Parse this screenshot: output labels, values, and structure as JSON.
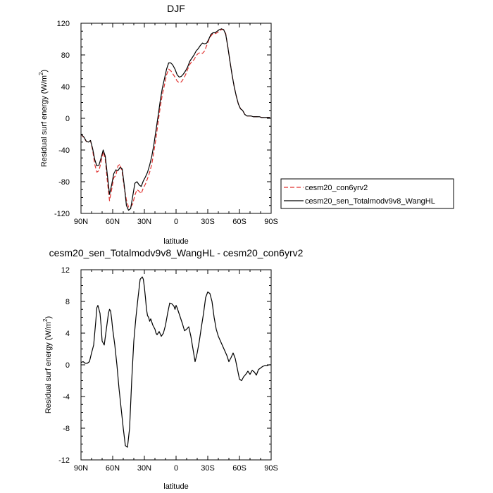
{
  "chart_data": [
    {
      "type": "line",
      "title": "DJF",
      "xlabel": "latitude",
      "ylabel": "Residual surf energy (W/m",
      "ylabel_sup": "2",
      "ylabel_end": ")",
      "xlim": [
        90,
        -90
      ],
      "ylim": [
        -120,
        120
      ],
      "xticks": [
        {
          "v": 90,
          "label": "90N"
        },
        {
          "v": 60,
          "label": "60N"
        },
        {
          "v": 30,
          "label": "30N"
        },
        {
          "v": 0,
          "label": "0"
        },
        {
          "v": -30,
          "label": "30S"
        },
        {
          "v": -60,
          "label": "60S"
        },
        {
          "v": -90,
          "label": "90S"
        }
      ],
      "yticks": [
        -120,
        -80,
        -40,
        0,
        40,
        80,
        120
      ],
      "legend": "right",
      "series": [
        {
          "name": "cesm20_con6yrv2",
          "color": "#e0312f",
          "dash": "dashed",
          "x": [
            90,
            87,
            85,
            83,
            81,
            79,
            77,
            75,
            73,
            71,
            69,
            67,
            65,
            63,
            61,
            59,
            57,
            55,
            53,
            51,
            49,
            47,
            45,
            43,
            41,
            39,
            37,
            35,
            33,
            31,
            29,
            27,
            25,
            23,
            21,
            19,
            17,
            15,
            13,
            11,
            9,
            7,
            5,
            3,
            1,
            -1,
            -3,
            -5,
            -7,
            -9,
            -11,
            -13,
            -15,
            -17,
            -19,
            -21,
            -23,
            -25,
            -27,
            -29,
            -31,
            -33,
            -35,
            -37,
            -39,
            -41,
            -43,
            -45,
            -47,
            -49,
            -51,
            -53,
            -55,
            -57,
            -59,
            -61,
            -63,
            -65,
            -67,
            -69,
            -71,
            -73,
            -75,
            -77,
            -79,
            -81,
            -83,
            -85,
            -87,
            -89
          ],
          "y": [
            -20,
            -25,
            -29,
            -30,
            -28,
            -40,
            -58,
            -68,
            -66,
            -55,
            -42,
            -52,
            -80,
            -104,
            -90,
            -75,
            -72,
            -60,
            -58,
            -68,
            -88,
            -103,
            -112,
            -112,
            -108,
            -97,
            -90,
            -92,
            -95,
            -88,
            -83,
            -76,
            -68,
            -58,
            -42,
            -25,
            -5,
            14,
            30,
            42,
            55,
            62,
            60,
            56,
            52,
            47,
            45,
            46,
            50,
            55,
            62,
            68,
            72,
            74,
            79,
            82,
            83,
            82,
            85,
            92,
            99,
            104,
            107,
            107,
            108,
            110,
            112,
            112,
            107,
            90,
            72,
            55,
            40,
            28,
            18,
            12,
            10,
            5,
            3,
            3,
            3,
            2,
            2,
            2,
            2,
            1,
            1,
            1,
            1,
            1
          ]
        },
        {
          "name": "cesm20_sen_Totalmodv9v8_WangHL",
          "color": "#000000",
          "dash": "solid",
          "x": [
            90,
            87,
            85,
            83,
            81,
            79,
            77,
            75,
            73,
            71,
            69,
            67,
            65,
            63,
            61,
            59,
            57,
            55,
            53,
            51,
            49,
            47,
            45,
            43,
            41,
            39,
            37,
            35,
            33,
            31,
            29,
            27,
            25,
            23,
            21,
            19,
            17,
            15,
            13,
            11,
            9,
            7,
            5,
            3,
            1,
            -1,
            -3,
            -5,
            -7,
            -9,
            -11,
            -13,
            -15,
            -17,
            -19,
            -21,
            -23,
            -25,
            -27,
            -29,
            -31,
            -33,
            -35,
            -37,
            -39,
            -41,
            -43,
            -45,
            -47,
            -49,
            -51,
            -53,
            -55,
            -57,
            -59,
            -61,
            -63,
            -65,
            -67,
            -69,
            -71,
            -73,
            -75,
            -77,
            -79,
            -81,
            -83,
            -85,
            -87,
            -89
          ],
          "y": [
            -20,
            -24,
            -29,
            -30,
            -28,
            -38,
            -52,
            -60,
            -59,
            -50,
            -40,
            -48,
            -72,
            -96,
            -84,
            -70,
            -65,
            -66,
            -62,
            -64,
            -85,
            -110,
            -116,
            -114,
            -98,
            -82,
            -80,
            -84,
            -86,
            -79,
            -74,
            -68,
            -59,
            -48,
            -33,
            -15,
            3,
            22,
            38,
            50,
            62,
            70,
            70,
            67,
            62,
            55,
            52,
            53,
            56,
            60,
            65,
            72,
            76,
            80,
            85,
            88,
            92,
            95,
            94,
            95,
            100,
            106,
            108,
            108,
            110,
            112,
            113,
            112,
            106,
            90,
            72,
            55,
            40,
            28,
            18,
            12,
            10,
            5,
            3,
            3,
            3,
            2,
            2,
            2,
            2,
            1,
            1,
            1,
            1,
            1
          ]
        }
      ]
    },
    {
      "type": "line",
      "title": "cesm20_sen_Totalmodv9v8_WangHL - cesm20_con6yrv2",
      "xlabel": "latitude",
      "ylabel": "Residual surf energy (W/m",
      "ylabel_sup": "2",
      "ylabel_end": ")",
      "xlim": [
        90,
        -90
      ],
      "ylim": [
        -12,
        12
      ],
      "xticks": [
        {
          "v": 90,
          "label": "90N"
        },
        {
          "v": 60,
          "label": "60N"
        },
        {
          "v": 30,
          "label": "30N"
        },
        {
          "v": 0,
          "label": "0"
        },
        {
          "v": -30,
          "label": "30S"
        },
        {
          "v": -60,
          "label": "60S"
        },
        {
          "v": -90,
          "label": "90S"
        }
      ],
      "yticks": [
        -12,
        -8,
        -4,
        0,
        4,
        8,
        12
      ],
      "series": [
        {
          "color": "#000000",
          "dash": "solid",
          "x": [
            90,
            88,
            86,
            84,
            82,
            80,
            78,
            76,
            75,
            74,
            72,
            71,
            70,
            68,
            66,
            64,
            63,
            62,
            61,
            60,
            58,
            56,
            54,
            52,
            50,
            48,
            46,
            44,
            43,
            42,
            40,
            38,
            36,
            34,
            32,
            31,
            30,
            29,
            28,
            27,
            26,
            25,
            24,
            22,
            20,
            19,
            18,
            16,
            14,
            12,
            10,
            8,
            6,
            4,
            2,
            1,
            0,
            -1,
            -2,
            -4,
            -6,
            -8,
            -10,
            -12,
            -14,
            -16,
            -18,
            -20,
            -22,
            -24,
            -26,
            -28,
            -30,
            -32,
            -34,
            -36,
            -38,
            -40,
            -42,
            -44,
            -46,
            -48,
            -50,
            -52,
            -54,
            -56,
            -58,
            -60,
            -62,
            -64,
            -66,
            -68,
            -70,
            -72,
            -74,
            -76,
            -78,
            -80,
            -82,
            -84,
            -86,
            -88,
            -90
          ],
          "y": [
            0.3,
            0.4,
            0.2,
            0.2,
            0.4,
            1.5,
            2.5,
            5.5,
            7.2,
            7.5,
            6.5,
            5.0,
            3.0,
            2.5,
            4.5,
            6.5,
            7.0,
            6.8,
            5.8,
            4.5,
            2.5,
            0.0,
            -3.0,
            -5.5,
            -8.0,
            -10.2,
            -10.4,
            -8.0,
            -5.0,
            -2.0,
            3.0,
            6.0,
            8.5,
            10.8,
            11.1,
            10.8,
            9.8,
            8.5,
            7.0,
            6.2,
            6.0,
            5.5,
            5.8,
            5.0,
            4.5,
            4.0,
            3.8,
            4.2,
            3.6,
            4.0,
            5.0,
            6.5,
            7.8,
            7.7,
            7.4,
            7.0,
            7.5,
            7.2,
            6.8,
            6.0,
            5.2,
            4.3,
            4.5,
            4.8,
            3.6,
            2.0,
            0.4,
            1.5,
            3.0,
            4.8,
            6.5,
            8.5,
            9.2,
            9.0,
            8.0,
            6.0,
            4.5,
            3.6,
            3.0,
            2.4,
            1.8,
            1.2,
            0.4,
            0.9,
            1.5,
            0.8,
            -0.5,
            -1.8,
            -2.0,
            -1.5,
            -1.2,
            -0.8,
            -1.2,
            -0.7,
            -0.9,
            -1.3,
            -0.6,
            -0.4,
            -0.2,
            -0.1,
            -0.1,
            0.0,
            0.0
          ]
        }
      ]
    }
  ]
}
